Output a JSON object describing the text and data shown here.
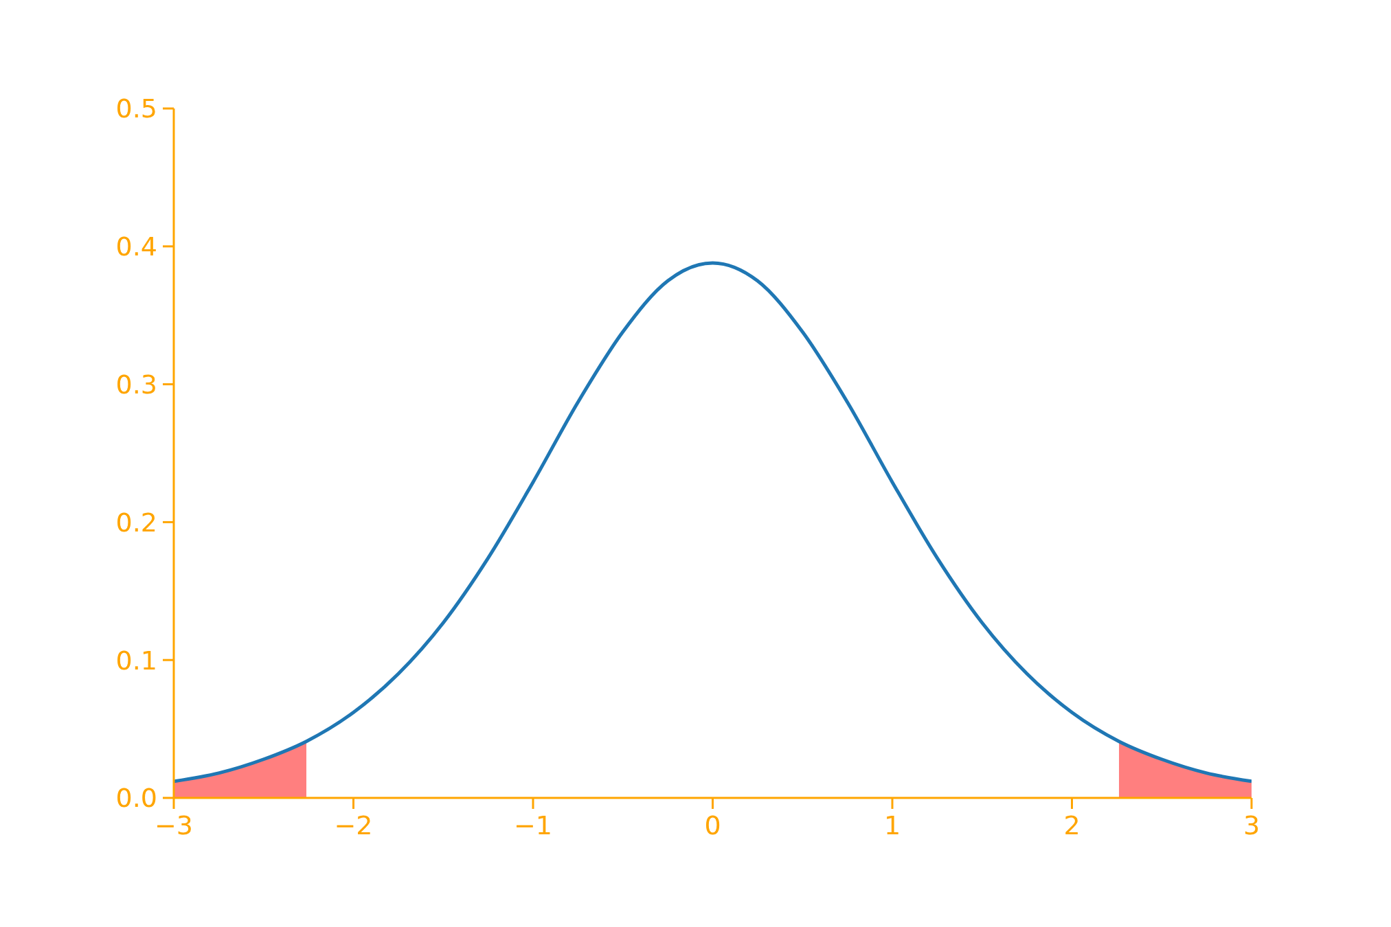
{
  "chart_data": {
    "type": "line",
    "xlim": [
      -3,
      3
    ],
    "xticks": [
      {
        "value": -3,
        "label": "−3"
      },
      {
        "value": -2,
        "label": "−2"
      },
      {
        "value": -1,
        "label": "−1"
      },
      0,
      1,
      2,
      3
    ],
    "ylim": [
      0,
      0.5
    ],
    "yticks": [
      {
        "value": 0,
        "label": "0.0"
      },
      0.1,
      0.2,
      0.3,
      0.4,
      0.5
    ],
    "grid": false,
    "series": [
      {
        "color": "#1f77b4",
        "x": [
          -3,
          -2.75,
          -2.5,
          -2.262,
          -2,
          -1.75,
          -1.5,
          -1.25,
          -1,
          -0.75,
          -0.5,
          -0.25,
          0,
          0.25,
          0.5,
          0.75,
          1,
          1.25,
          1.5,
          1.75,
          2,
          2.262,
          2.5,
          2.75,
          3
        ],
        "values": [
          0.012,
          0.018,
          0.028,
          0.041,
          0.062,
          0.09,
          0.127,
          0.174,
          0.229,
          0.287,
          0.338,
          0.375,
          0.388,
          0.375,
          0.338,
          0.287,
          0.229,
          0.174,
          0.127,
          0.09,
          0.062,
          0.041,
          0.028,
          0.018,
          0.012
        ]
      },
      {
        "type": "area",
        "color": "#ff7f7f",
        "x": [
          -3,
          -2.75,
          -2.5,
          -2.262
        ],
        "values": [
          0.012,
          0.018,
          0.028,
          0.041
        ]
      },
      {
        "type": "area",
        "color": "#ff7f7f",
        "x": [
          2.262,
          2.5,
          2.75,
          3
        ],
        "values": [
          0.041,
          0.028,
          0.018,
          0.012
        ]
      }
    ]
  }
}
